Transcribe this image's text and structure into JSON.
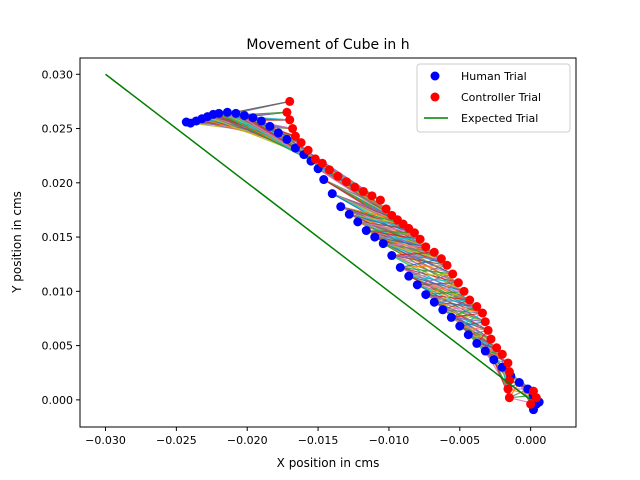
{
  "chart_data": {
    "type": "scatter",
    "title": "Movement of Cube in h",
    "xlabel": "X position in cms",
    "ylabel": "Y position in cms",
    "xlim": [
      -0.0318,
      0.0032
    ],
    "ylim": [
      -0.0025,
      0.0315
    ],
    "x_ticks": [
      -0.03,
      -0.025,
      -0.02,
      -0.015,
      -0.01,
      -0.005,
      0.0
    ],
    "x_tick_labels": [
      "−0.030",
      "−0.025",
      "−0.020",
      "−0.015",
      "−0.010",
      "−0.005",
      "0.000"
    ],
    "y_ticks": [
      0.0,
      0.005,
      0.01,
      0.015,
      0.02,
      0.025,
      0.03
    ],
    "y_tick_labels": [
      "0.000",
      "0.005",
      "0.010",
      "0.015",
      "0.020",
      "0.025",
      "0.030"
    ],
    "grid": false,
    "legend_position": "top-right",
    "legend": [
      {
        "name": "Human Trial",
        "marker": "dot",
        "color": "#0000ff"
      },
      {
        "name": "Controller Trial",
        "marker": "dot",
        "color": "#ff0000"
      },
      {
        "name": "Expected Trial",
        "marker": "line",
        "color": "#008000"
      }
    ],
    "series": [
      {
        "name": "Human Trial",
        "color": "#0000ff",
        "points": [
          [
            -0.0243,
            0.0256
          ],
          [
            -0.024,
            0.0255
          ],
          [
            -0.0236,
            0.0257
          ],
          [
            -0.0232,
            0.0259
          ],
          [
            -0.0228,
            0.0261
          ],
          [
            -0.0224,
            0.0263
          ],
          [
            -0.022,
            0.0264
          ],
          [
            -0.0214,
            0.0265
          ],
          [
            -0.0208,
            0.0264
          ],
          [
            -0.0202,
            0.0262
          ],
          [
            -0.0196,
            0.026
          ],
          [
            -0.019,
            0.0257
          ],
          [
            -0.0184,
            0.0252
          ],
          [
            -0.0178,
            0.0246
          ],
          [
            -0.0172,
            0.024
          ],
          [
            -0.0166,
            0.0232
          ],
          [
            -0.016,
            0.0226
          ],
          [
            -0.0155,
            0.022
          ],
          [
            -0.015,
            0.0213
          ],
          [
            -0.0146,
            0.0203
          ],
          [
            -0.014,
            0.019
          ],
          [
            -0.0134,
            0.0178
          ],
          [
            -0.0128,
            0.0171
          ],
          [
            -0.0122,
            0.0164
          ],
          [
            -0.0116,
            0.0156
          ],
          [
            -0.011,
            0.015
          ],
          [
            -0.0104,
            0.0144
          ],
          [
            -0.0098,
            0.0133
          ],
          [
            -0.0092,
            0.0122
          ],
          [
            -0.0086,
            0.0114
          ],
          [
            -0.008,
            0.0106
          ],
          [
            -0.0074,
            0.0097
          ],
          [
            -0.0068,
            0.009
          ],
          [
            -0.0062,
            0.0083
          ],
          [
            -0.0056,
            0.0076
          ],
          [
            -0.005,
            0.0068
          ],
          [
            -0.0044,
            0.006
          ],
          [
            -0.0038,
            0.0052
          ],
          [
            -0.0032,
            0.0045
          ],
          [
            -0.0026,
            0.0037
          ],
          [
            -0.002,
            0.003
          ],
          [
            -0.0014,
            0.0022
          ],
          [
            -0.0008,
            0.0016
          ],
          [
            -0.0002,
            0.001
          ],
          [
            0.0002,
            0.0004
          ],
          [
            0.0004,
            -0.0004
          ],
          [
            0.0002,
            -0.0009
          ],
          [
            0.0006,
            -0.0002
          ]
        ]
      },
      {
        "name": "Controller Trial",
        "color": "#ff0000",
        "points": [
          [
            -0.017,
            0.0275
          ],
          [
            -0.0172,
            0.0265
          ],
          [
            -0.017,
            0.0258
          ],
          [
            -0.0168,
            0.025
          ],
          [
            -0.0166,
            0.0243
          ],
          [
            -0.0162,
            0.0237
          ],
          [
            -0.0157,
            0.023
          ],
          [
            -0.0152,
            0.0222
          ],
          [
            -0.0147,
            0.0218
          ],
          [
            -0.0142,
            0.0212
          ],
          [
            -0.0136,
            0.0206
          ],
          [
            -0.013,
            0.0201
          ],
          [
            -0.0124,
            0.0196
          ],
          [
            -0.0118,
            0.0192
          ],
          [
            -0.0112,
            0.0188
          ],
          [
            -0.0106,
            0.0184
          ],
          [
            -0.0102,
            0.0176
          ],
          [
            -0.0098,
            0.017
          ],
          [
            -0.0094,
            0.0166
          ],
          [
            -0.009,
            0.0162
          ],
          [
            -0.0086,
            0.0158
          ],
          [
            -0.0082,
            0.0154
          ],
          [
            -0.0078,
            0.0148
          ],
          [
            -0.0074,
            0.0141
          ],
          [
            -0.0068,
            0.0136
          ],
          [
            -0.0063,
            0.013
          ],
          [
            -0.0059,
            0.0124
          ],
          [
            -0.0055,
            0.0116
          ],
          [
            -0.0051,
            0.0108
          ],
          [
            -0.0047,
            0.01
          ],
          [
            -0.0043,
            0.0092
          ],
          [
            -0.0038,
            0.0086
          ],
          [
            -0.0034,
            0.008
          ],
          [
            -0.0032,
            0.0072
          ],
          [
            -0.003,
            0.0064
          ],
          [
            -0.0028,
            0.0056
          ],
          [
            -0.0024,
            0.0048
          ],
          [
            -0.002,
            0.0042
          ],
          [
            -0.0016,
            0.0034
          ],
          [
            -0.0015,
            0.0026
          ],
          [
            -0.0015,
            0.0018
          ],
          [
            -0.0016,
            0.001
          ],
          [
            -0.0015,
            0.0002
          ],
          [
            0.0002,
            0.0008
          ],
          [
            0.0004,
            0.0002
          ],
          [
            0.0,
            -0.0004
          ]
        ]
      },
      {
        "name": "Expected Trial",
        "color": "#008000",
        "points": [
          [
            -0.03,
            0.03
          ],
          [
            0.0,
            0.0
          ]
        ]
      }
    ]
  }
}
